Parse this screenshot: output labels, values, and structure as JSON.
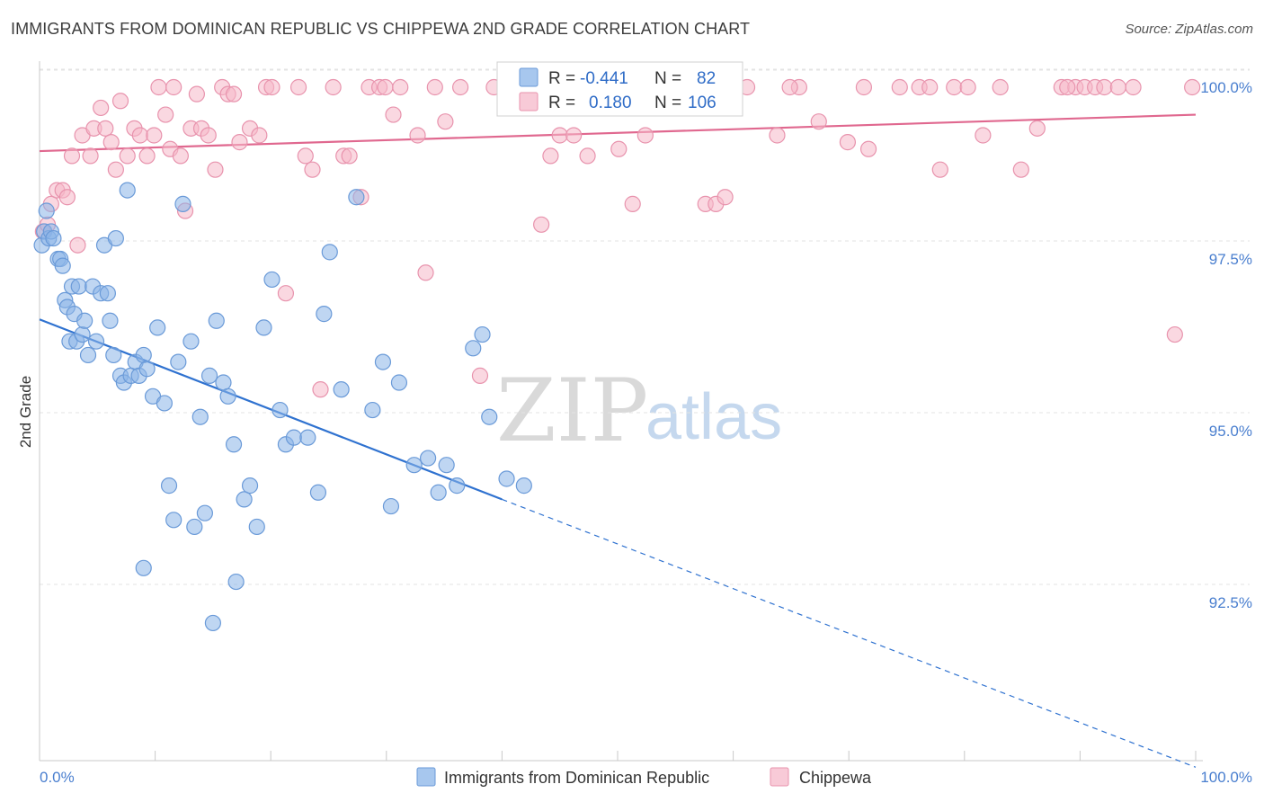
{
  "title": "IMMIGRANTS FROM DOMINICAN REPUBLIC VS CHIPPEWA 2ND GRADE CORRELATION CHART",
  "source": "Source: ZipAtlas.com",
  "watermark": {
    "zip": "ZIP",
    "atlas": "atlas"
  },
  "chart_data": {
    "type": "scatter",
    "xlabel": "",
    "ylabel": "2nd Grade",
    "xlim": [
      0,
      100
    ],
    "ylim": [
      90.0,
      100.4
    ],
    "x_ticks": [
      {
        "value": 0,
        "label": "0.0%"
      },
      {
        "value": 100,
        "label": "100.0%"
      }
    ],
    "y_ticks": [
      {
        "value": 100.0,
        "label": "100.0%"
      },
      {
        "value": 97.5,
        "label": "97.5%"
      },
      {
        "value": 95.0,
        "label": "95.0%"
      },
      {
        "value": 92.5,
        "label": "92.5%"
      }
    ],
    "grid": true,
    "legend_position": "top-center",
    "series": [
      {
        "name": "Immigrants from Dominican Republic",
        "color": "#8ab4e8",
        "edge": "#6a9ad8",
        "line_color": "#2f72d0",
        "R": "-0.441",
        "N": "82",
        "trend": {
          "x0": 0,
          "y0": 96.62,
          "x1": 40,
          "y1": 94.0,
          "dash_to_x": 100,
          "dash_to_y": 90.1
        },
        "points": [
          [
            0.2,
            97.7
          ],
          [
            0.4,
            97.9
          ],
          [
            0.6,
            98.2
          ],
          [
            0.8,
            97.8
          ],
          [
            1.0,
            97.9
          ],
          [
            1.2,
            97.8
          ],
          [
            1.6,
            97.5
          ],
          [
            1.8,
            97.5
          ],
          [
            2.0,
            97.4
          ],
          [
            2.2,
            96.9
          ],
          [
            2.4,
            96.8
          ],
          [
            2.6,
            96.3
          ],
          [
            2.8,
            97.1
          ],
          [
            3.0,
            96.7
          ],
          [
            3.2,
            96.3
          ],
          [
            3.4,
            97.1
          ],
          [
            3.7,
            96.4
          ],
          [
            3.9,
            96.6
          ],
          [
            4.2,
            96.1
          ],
          [
            4.6,
            97.1
          ],
          [
            4.9,
            96.3
          ],
          [
            5.3,
            97.0
          ],
          [
            5.6,
            97.7
          ],
          [
            5.9,
            97.0
          ],
          [
            6.1,
            96.6
          ],
          [
            6.4,
            96.1
          ],
          [
            6.6,
            97.8
          ],
          [
            7.0,
            95.8
          ],
          [
            7.3,
            95.7
          ],
          [
            7.6,
            98.5
          ],
          [
            7.9,
            95.8
          ],
          [
            8.3,
            96.0
          ],
          [
            8.6,
            95.8
          ],
          [
            9.0,
            96.1
          ],
          [
            9.3,
            95.9
          ],
          [
            9.8,
            95.5
          ],
          [
            10.2,
            96.5
          ],
          [
            10.8,
            95.4
          ],
          [
            11.2,
            94.2
          ],
          [
            11.6,
            93.7
          ],
          [
            12.0,
            96.0
          ],
          [
            12.4,
            98.3
          ],
          [
            13.1,
            96.3
          ],
          [
            13.4,
            93.6
          ],
          [
            13.9,
            95.2
          ],
          [
            14.3,
            93.8
          ],
          [
            14.7,
            95.8
          ],
          [
            15.3,
            96.6
          ],
          [
            15.9,
            95.7
          ],
          [
            16.3,
            95.5
          ],
          [
            16.8,
            94.8
          ],
          [
            17.0,
            92.8
          ],
          [
            17.7,
            94.0
          ],
          [
            18.2,
            94.2
          ],
          [
            18.8,
            93.6
          ],
          [
            19.4,
            96.5
          ],
          [
            20.1,
            97.2
          ],
          [
            20.8,
            95.3
          ],
          [
            21.3,
            94.8
          ],
          [
            22.0,
            94.9
          ],
          [
            23.2,
            94.9
          ],
          [
            24.1,
            94.1
          ],
          [
            24.6,
            96.7
          ],
          [
            25.1,
            97.6
          ],
          [
            26.1,
            95.6
          ],
          [
            27.4,
            98.4
          ],
          [
            28.8,
            95.3
          ],
          [
            29.7,
            96.0
          ],
          [
            30.4,
            93.9
          ],
          [
            31.1,
            95.7
          ],
          [
            32.4,
            94.5
          ],
          [
            33.6,
            94.6
          ],
          [
            34.5,
            94.1
          ],
          [
            35.2,
            94.5
          ],
          [
            36.1,
            94.2
          ],
          [
            37.5,
            96.2
          ],
          [
            38.3,
            96.4
          ],
          [
            38.9,
            95.2
          ],
          [
            40.4,
            94.3
          ],
          [
            41.9,
            94.2
          ],
          [
            15.0,
            92.2
          ],
          [
            9.0,
            93.0
          ]
        ]
      },
      {
        "name": "Chippewa",
        "color": "#f5b8c9",
        "edge": "#e893ad",
        "line_color": "#e0688f",
        "R": "0.180",
        "N": "106",
        "trend": {
          "x0": 0,
          "y0": 99.07,
          "x1": 100,
          "y1": 99.6
        },
        "points": [
          [
            0.3,
            97.9
          ],
          [
            0.7,
            98.0
          ],
          [
            1.0,
            98.3
          ],
          [
            1.5,
            98.5
          ],
          [
            2.0,
            98.5
          ],
          [
            2.4,
            98.4
          ],
          [
            2.8,
            99.0
          ],
          [
            3.3,
            97.7
          ],
          [
            3.7,
            99.3
          ],
          [
            4.4,
            99.0
          ],
          [
            4.7,
            99.4
          ],
          [
            5.3,
            99.7
          ],
          [
            5.7,
            99.4
          ],
          [
            6.2,
            99.2
          ],
          [
            6.6,
            98.8
          ],
          [
            7.0,
            99.8
          ],
          [
            7.6,
            99.0
          ],
          [
            8.2,
            99.4
          ],
          [
            8.7,
            99.3
          ],
          [
            9.3,
            99.0
          ],
          [
            9.9,
            99.3
          ],
          [
            10.3,
            100.0
          ],
          [
            10.9,
            99.6
          ],
          [
            11.3,
            99.1
          ],
          [
            11.6,
            100.0
          ],
          [
            12.2,
            99.0
          ],
          [
            12.6,
            98.2
          ],
          [
            13.1,
            99.4
          ],
          [
            13.6,
            99.9
          ],
          [
            14.0,
            99.4
          ],
          [
            14.6,
            99.3
          ],
          [
            15.2,
            98.8
          ],
          [
            15.8,
            100.0
          ],
          [
            16.3,
            99.9
          ],
          [
            16.8,
            99.9
          ],
          [
            17.3,
            99.2
          ],
          [
            18.2,
            99.4
          ],
          [
            19.0,
            99.3
          ],
          [
            19.6,
            100.0
          ],
          [
            20.1,
            100.0
          ],
          [
            21.3,
            97.0
          ],
          [
            22.4,
            100.0
          ],
          [
            23.0,
            99.0
          ],
          [
            23.6,
            98.8
          ],
          [
            24.3,
            95.6
          ],
          [
            25.4,
            100.0
          ],
          [
            26.3,
            99.0
          ],
          [
            26.8,
            99.0
          ],
          [
            27.8,
            98.4
          ],
          [
            28.5,
            100.0
          ],
          [
            29.4,
            100.0
          ],
          [
            29.9,
            100.0
          ],
          [
            30.6,
            99.6
          ],
          [
            31.2,
            100.0
          ],
          [
            32.7,
            99.3
          ],
          [
            33.4,
            97.3
          ],
          [
            34.2,
            100.0
          ],
          [
            35.1,
            99.5
          ],
          [
            36.4,
            100.0
          ],
          [
            38.1,
            95.8
          ],
          [
            39.3,
            100.0
          ],
          [
            40.6,
            100.0
          ],
          [
            42.4,
            100.0
          ],
          [
            43.4,
            98.0
          ],
          [
            44.2,
            99.0
          ],
          [
            45.0,
            99.3
          ],
          [
            46.2,
            99.3
          ],
          [
            47.4,
            99.0
          ],
          [
            48.9,
            100.0
          ],
          [
            50.1,
            99.1
          ],
          [
            51.3,
            98.3
          ],
          [
            52.4,
            99.3
          ],
          [
            54.6,
            100.0
          ],
          [
            56.3,
            99.7
          ],
          [
            57.6,
            98.3
          ],
          [
            58.5,
            98.3
          ],
          [
            59.3,
            98.4
          ],
          [
            61.2,
            100.0
          ],
          [
            63.8,
            99.3
          ],
          [
            65.7,
            100.0
          ],
          [
            67.4,
            99.5
          ],
          [
            69.9,
            99.2
          ],
          [
            71.3,
            100.0
          ],
          [
            71.7,
            99.1
          ],
          [
            74.4,
            100.0
          ],
          [
            76.1,
            100.0
          ],
          [
            77.9,
            98.8
          ],
          [
            79.1,
            100.0
          ],
          [
            80.3,
            100.0
          ],
          [
            81.6,
            99.3
          ],
          [
            83.1,
            100.0
          ],
          [
            84.9,
            98.8
          ],
          [
            86.3,
            99.4
          ],
          [
            88.4,
            100.0
          ],
          [
            89.6,
            100.0
          ],
          [
            90.4,
            100.0
          ],
          [
            91.3,
            100.0
          ],
          [
            92.1,
            100.0
          ],
          [
            93.3,
            100.0
          ],
          [
            94.6,
            100.0
          ],
          [
            98.2,
            96.4
          ],
          [
            99.7,
            100.0
          ],
          [
            88.9,
            100.0
          ],
          [
            77.0,
            100.0
          ],
          [
            64.9,
            100.0
          ],
          [
            56.0,
            100.0
          ]
        ]
      }
    ]
  },
  "legend": {
    "r_label": "R =",
    "n_label": "N ="
  }
}
